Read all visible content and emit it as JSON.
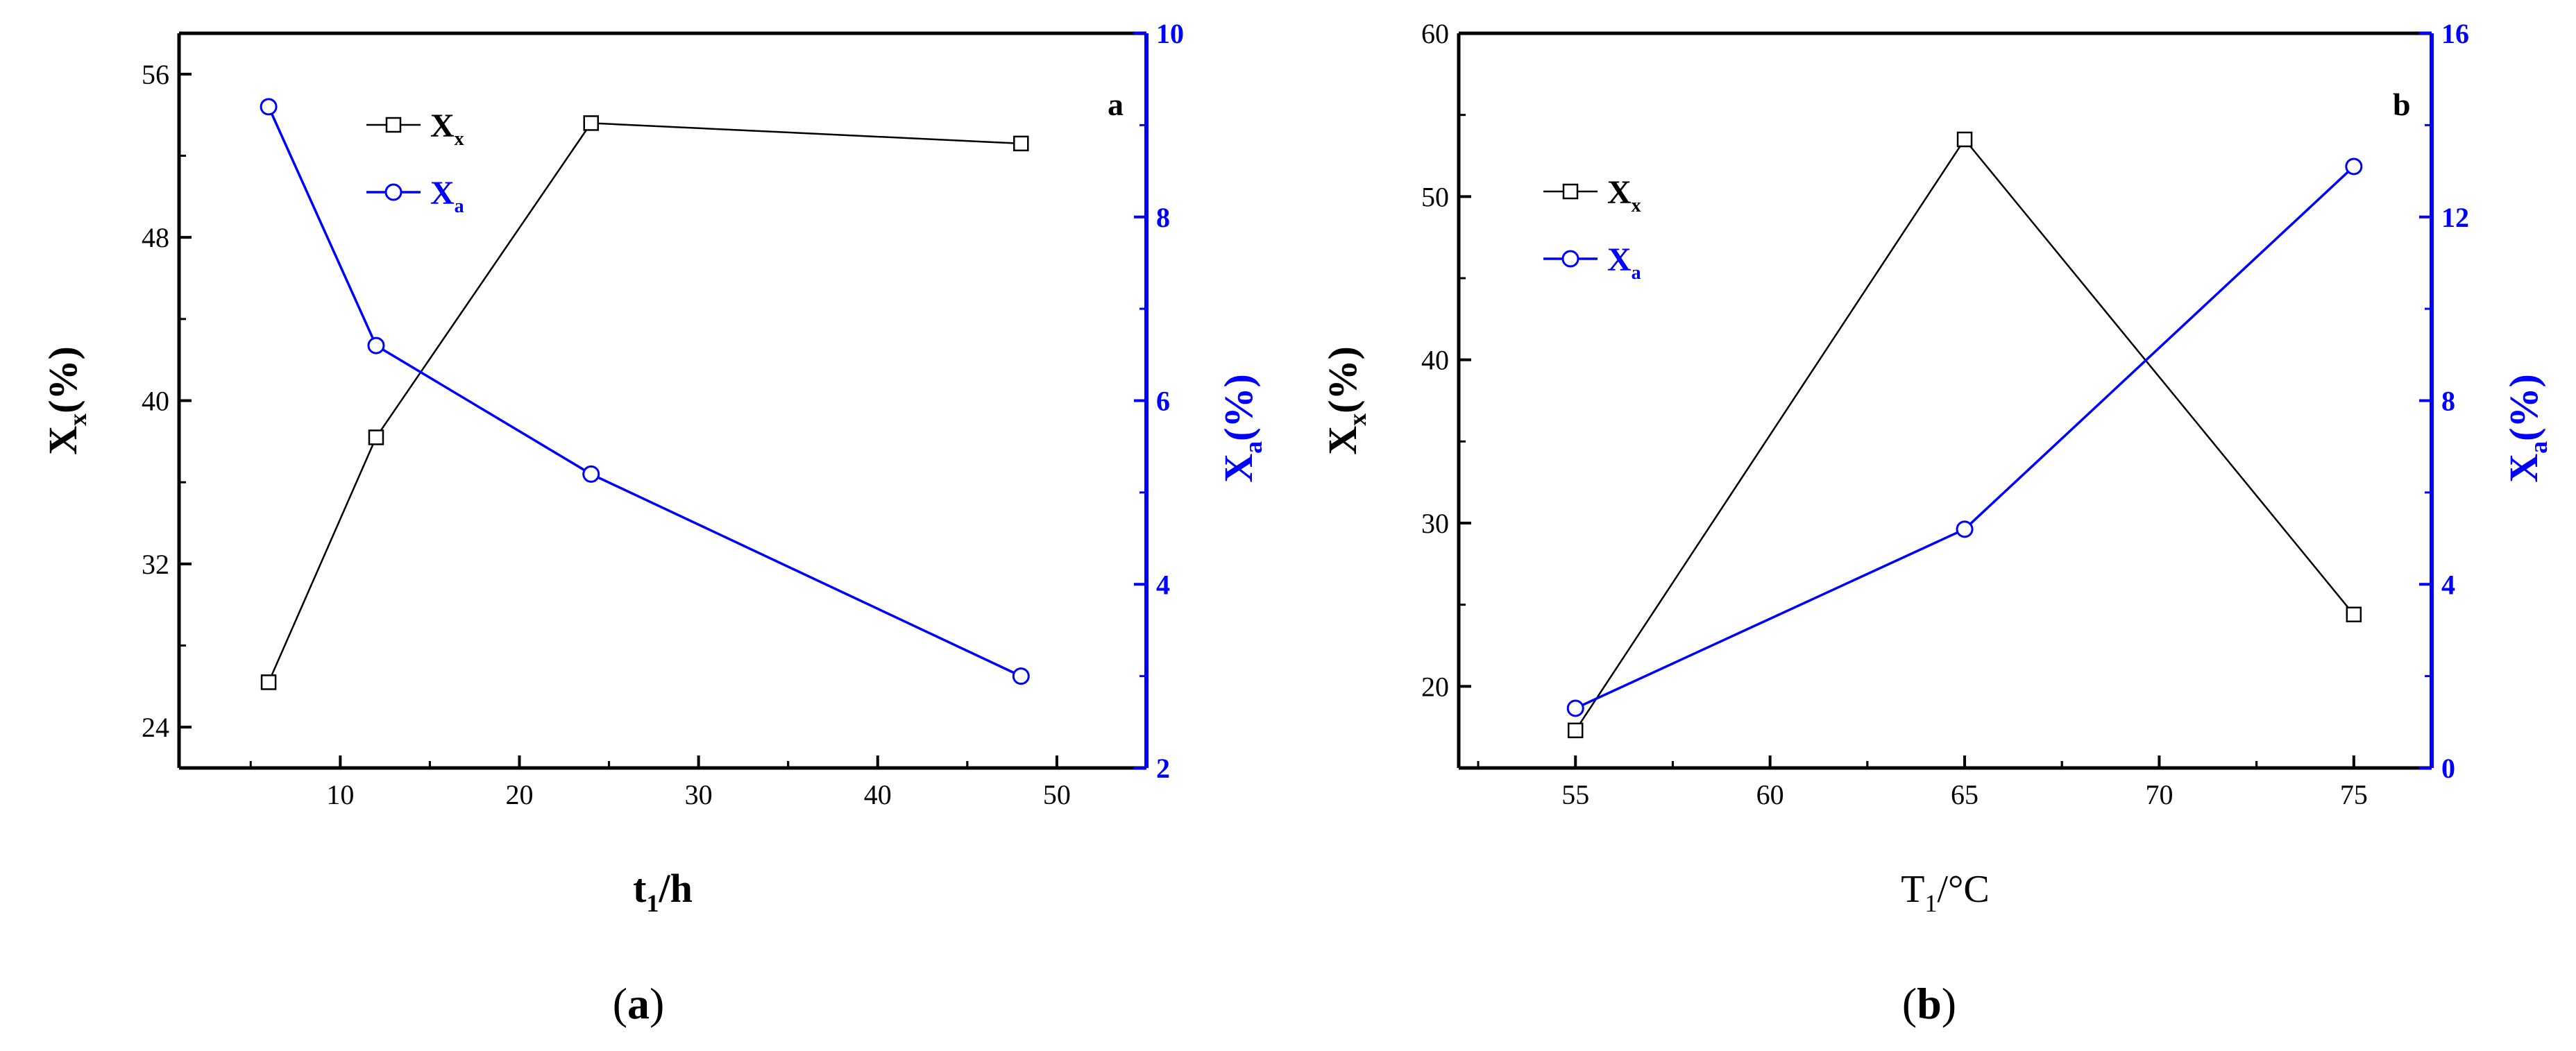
{
  "chart_data": [
    {
      "type": "line",
      "panel_letter": "a",
      "caption_prefix": "(",
      "caption_letter": "a",
      "caption_suffix": ")",
      "xlabel_main": "t",
      "xlabel_sub": "1",
      "xlabel_rest": "/h",
      "xlim": [
        1,
        55
      ],
      "xticks": [
        10,
        20,
        30,
        40,
        50
      ],
      "left_axis": {
        "label_main": "X",
        "label_sub": "x",
        "label_rest": "(%)",
        "ylim": [
          22,
          58
        ],
        "ticks": [
          24,
          32,
          40,
          48,
          56
        ],
        "color": "#000000"
      },
      "right_axis": {
        "label_main": "X",
        "label_sub": "a",
        "label_rest": "(%)",
        "ylim": [
          2,
          10
        ],
        "ticks": [
          2,
          4,
          6,
          8,
          10
        ],
        "color": "#0000ff"
      },
      "legend_position": "top-center",
      "series": [
        {
          "name_main": "X",
          "name_sub": "x",
          "axis": "left",
          "marker": "square",
          "color": "#000000",
          "x": [
            6,
            12,
            24,
            48
          ],
          "y": [
            26.2,
            38.2,
            53.6,
            52.6
          ]
        },
        {
          "name_main": "X",
          "name_sub": "a",
          "axis": "right",
          "marker": "circle",
          "color": "#0000ff",
          "x": [
            6,
            12,
            24,
            48
          ],
          "y": [
            9.2,
            6.6,
            5.2,
            3.0
          ]
        }
      ]
    },
    {
      "type": "line",
      "panel_letter": "b",
      "caption_prefix": "(",
      "caption_letter": "b",
      "caption_suffix": ")",
      "xlabel_main": "T",
      "xlabel_sub": "1",
      "xlabel_rest": "/°C",
      "xlim": [
        52,
        77
      ],
      "xticks": [
        55,
        60,
        65,
        70,
        75
      ],
      "left_axis": {
        "label_main": "X",
        "label_sub": "x",
        "label_rest": "(%)",
        "ylim": [
          15,
          60
        ],
        "ticks": [
          20,
          30,
          40,
          50,
          60
        ],
        "color": "#000000"
      },
      "right_axis": {
        "label_main": "X",
        "label_sub": "a",
        "label_rest": "(%)",
        "ylim": [
          0,
          16
        ],
        "ticks": [
          0,
          4,
          8,
          12,
          16
        ],
        "color": "#0000ff"
      },
      "legend_position": "top-left",
      "series": [
        {
          "name_main": "X",
          "name_sub": "x",
          "axis": "left",
          "marker": "square",
          "color": "#000000",
          "x": [
            55,
            65,
            75
          ],
          "y": [
            17.3,
            53.5,
            24.4
          ]
        },
        {
          "name_main": "X",
          "name_sub": "a",
          "axis": "right",
          "marker": "circle",
          "color": "#0000ff",
          "x": [
            55,
            65,
            75
          ],
          "y": [
            1.3,
            5.2,
            13.1
          ]
        }
      ]
    }
  ]
}
